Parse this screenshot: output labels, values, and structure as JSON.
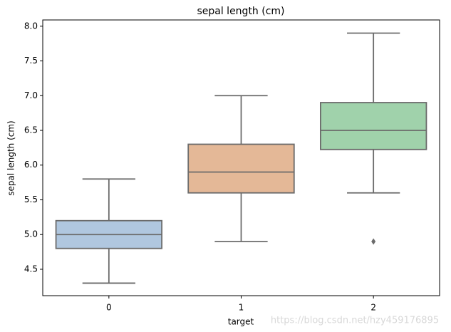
{
  "chart_data": {
    "type": "box",
    "title": "sepal length (cm)",
    "x_label": "target",
    "y_label": "sepal length (cm)",
    "categories": [
      "0",
      "1",
      "2"
    ],
    "colors": [
      "#b0c7df",
      "#e4b897",
      "#a0d2ab"
    ],
    "line_color": "#6b6b6b",
    "boxes": [
      {
        "whislo": 4.3,
        "q1": 4.8,
        "med": 5.0,
        "q3": 5.2,
        "whishi": 5.8,
        "fliers": []
      },
      {
        "whislo": 4.9,
        "q1": 5.6,
        "med": 5.9,
        "q3": 6.3,
        "whishi": 7.0,
        "fliers": []
      },
      {
        "whislo": 5.6,
        "q1": 6.225,
        "med": 6.5,
        "q3": 6.9,
        "whishi": 7.9,
        "fliers": [
          4.9
        ]
      }
    ],
    "ylim": [
      4.12,
      8.09
    ],
    "yticks": [
      4.5,
      {
        "value": 5.0,
        "label": "5.0"
      },
      5.5,
      {
        "value": 6.0,
        "label": "6.0"
      },
      6.5,
      {
        "value": 7.0,
        "label": "7.0"
      },
      7.5,
      {
        "value": 8.0,
        "label": "8.0"
      }
    ],
    "grid": false
  },
  "watermark": "https://blog.csdn.net/hzy459176895"
}
